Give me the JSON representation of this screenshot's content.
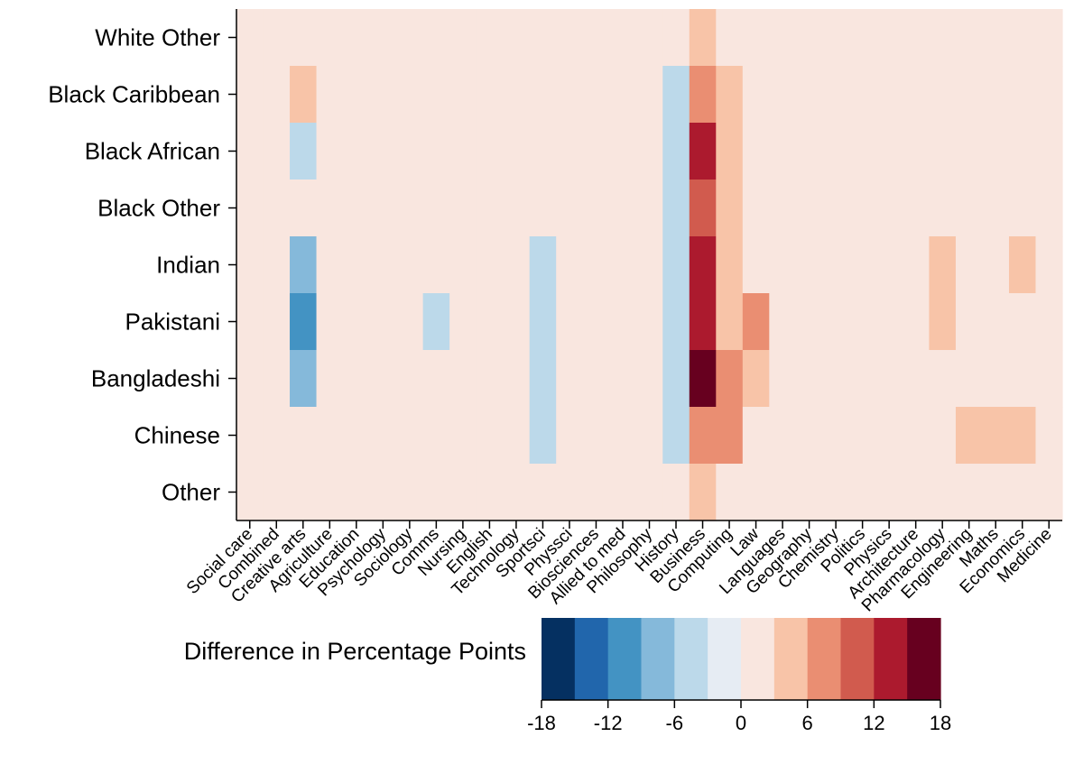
{
  "chart_data": {
    "type": "heatmap",
    "title": "",
    "xlabel": "",
    "ylabel": "",
    "rows": [
      "White Other",
      "Black Caribbean",
      "Black African",
      "Black Other",
      "Indian",
      "Pakistani",
      "Bangladeshi",
      "Chinese",
      "Other"
    ],
    "columns": [
      "Social care",
      "Combined",
      "Creative arts",
      "Agriculture",
      "Education",
      "Psychology",
      "Sociology",
      "Comms",
      "Nursing",
      "English",
      "Technology",
      "Sportsci",
      "Physsci",
      "Biosciences",
      "Allied to med",
      "Philosophy",
      "History",
      "Business",
      "Computing",
      "Law",
      "Languages",
      "Geography",
      "Chemistry",
      "Politics",
      "Physics",
      "Architecture",
      "Pharmacology",
      "Engineering",
      "Maths",
      "Economics",
      "Medicine"
    ],
    "values": [
      [
        0,
        0,
        0,
        0,
        0,
        0,
        0,
        0,
        0,
        0,
        0,
        0,
        0,
        0,
        1.5,
        1.5,
        0,
        4.5,
        1.5,
        1.5,
        1.5,
        0,
        0,
        1.5,
        1.5,
        0,
        1.5,
        0,
        0,
        1.5,
        1.5
      ],
      [
        1.5,
        1.5,
        4.5,
        0,
        0,
        1.5,
        1.5,
        1.5,
        0,
        0,
        0,
        1.5,
        0,
        0,
        0,
        0,
        -4.5,
        7.5,
        4.5,
        1.5,
        0,
        0,
        0,
        0,
        0,
        0,
        0,
        0,
        0,
        0,
        0
      ],
      [
        1.5,
        1.5,
        -4.5,
        0,
        0,
        0,
        0,
        0,
        0,
        0,
        0,
        0,
        0,
        1.5,
        1.5,
        0,
        -4.5,
        13.5,
        4.5,
        1.5,
        0,
        0,
        0,
        0,
        0,
        0,
        1.5,
        1.5,
        0,
        1.5,
        1.5
      ],
      [
        1.5,
        1.5,
        1.5,
        0,
        0,
        1.5,
        1.5,
        1.5,
        0,
        0,
        0,
        1.5,
        0,
        0,
        1.5,
        0,
        -4.5,
        10.5,
        4.5,
        1.5,
        0,
        0,
        0,
        0,
        0,
        0,
        1.5,
        0,
        0,
        1.5,
        0
      ],
      [
        0,
        0,
        -7.5,
        0,
        0,
        0,
        0,
        0,
        0,
        0,
        0,
        -4.5,
        0,
        0,
        1.5,
        0,
        -4.5,
        13.5,
        4.5,
        1.5,
        0,
        0,
        0,
        0,
        0,
        1.5,
        4.5,
        1.5,
        1.5,
        4.5,
        1.5
      ],
      [
        1.5,
        1.5,
        -10.5,
        0,
        0,
        0,
        0,
        -4.5,
        0,
        0,
        0,
        -4.5,
        0,
        1.5,
        1.5,
        0,
        -4.5,
        13.5,
        4.5,
        7.5,
        0,
        0,
        0,
        0,
        0,
        0,
        4.5,
        1.5,
        0,
        1.5,
        1.5
      ],
      [
        1.5,
        1.5,
        -7.5,
        0,
        0,
        0,
        1.5,
        0,
        0,
        0,
        0,
        -4.5,
        0,
        1.5,
        1.5,
        0,
        -4.5,
        16.5,
        7.5,
        4.5,
        0,
        0,
        0,
        0,
        0,
        0,
        1.5,
        0,
        1.5,
        1.5,
        1.5
      ],
      [
        0,
        0,
        0,
        0,
        0,
        0,
        0,
        0,
        0,
        0,
        0,
        -4.5,
        0,
        1.5,
        1.5,
        0,
        -4.5,
        7.5,
        7.5,
        0,
        0,
        0,
        1.5,
        0,
        0,
        0,
        1.5,
        4.5,
        4.5,
        4.5,
        1.5
      ],
      [
        0,
        0,
        0,
        0,
        0,
        0,
        0,
        0,
        0,
        0,
        0,
        0,
        0,
        1.5,
        1.5,
        0,
        0,
        4.5,
        1.5,
        1.5,
        0,
        0,
        0,
        0,
        0,
        0,
        1.5,
        1.5,
        1.5,
        1.5,
        1.5
      ]
    ],
    "colorbar": {
      "label": "Difference in Percentage Points",
      "range": [
        -18,
        18
      ],
      "ticks": [
        -18,
        -12,
        -6,
        0,
        6,
        12,
        18
      ],
      "bins": 12,
      "colors": [
        "#053061",
        "#2166ac",
        "#4393c3",
        "#85b9da",
        "#bcd9ea",
        "#e6ecf3",
        "#f9e6df",
        "#f8c4a8",
        "#ea8e72",
        "#d15b4e",
        "#ac1a2e",
        "#67001f"
      ]
    }
  }
}
